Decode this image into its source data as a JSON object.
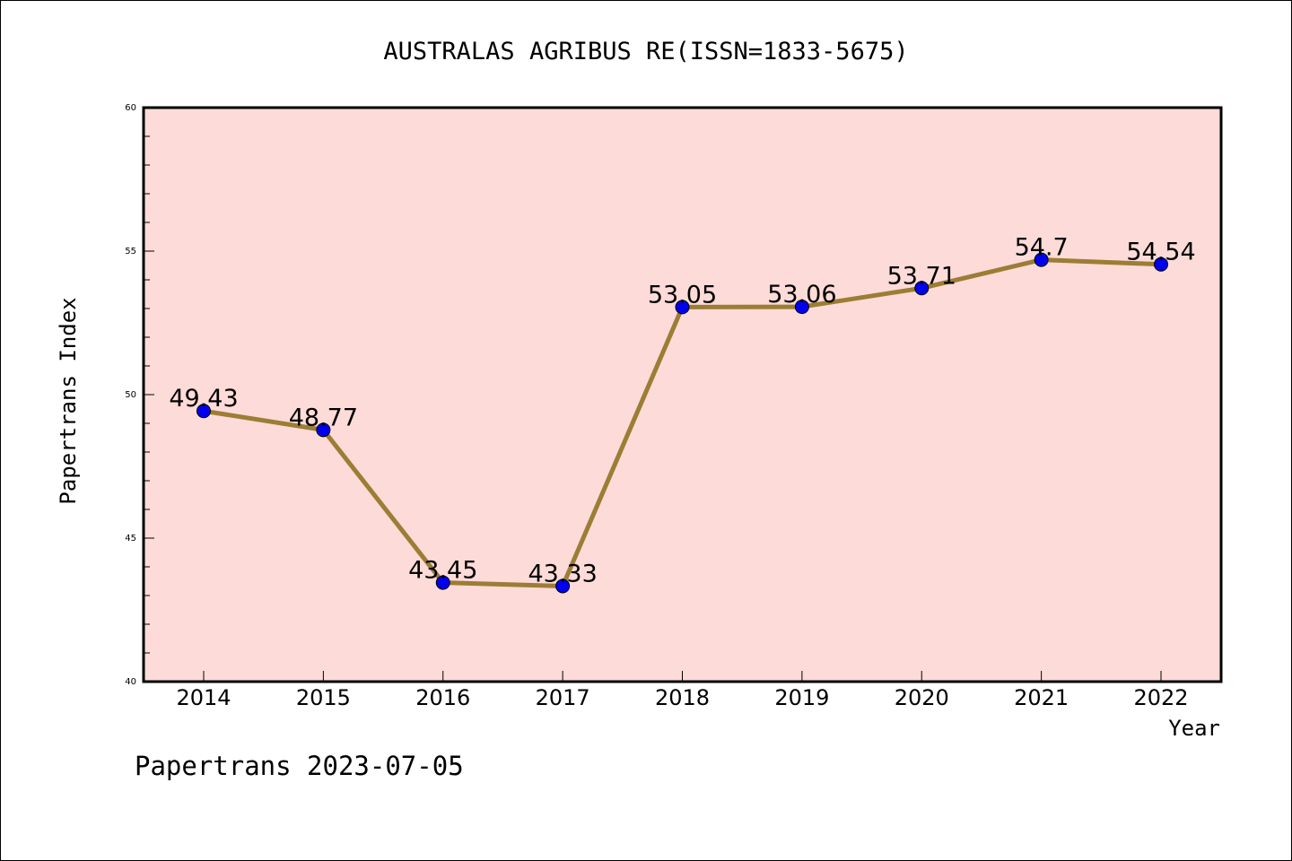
{
  "chart_data": {
    "type": "line",
    "title": "AUSTRALAS AGRIBUS RE(ISSN=1833-5675)",
    "xlabel": "Year",
    "ylabel": "Papertrans Index",
    "categories": [
      "2014",
      "2015",
      "2016",
      "2017",
      "2018",
      "2019",
      "2020",
      "2021",
      "2022"
    ],
    "series": [
      {
        "values": [
          49.43,
          48.77,
          43.45,
          43.33,
          53.05,
          53.06,
          53.71,
          54.7,
          54.54
        ],
        "data_labels": [
          "49.43",
          "48.77",
          "43.45",
          "43.33",
          "53.05",
          "53.06",
          "53.71",
          "54.7",
          "54.54"
        ]
      }
    ],
    "ylim": [
      40,
      60
    ],
    "yticks": [
      "40",
      "45",
      "50",
      "55",
      "60"
    ],
    "grid": false,
    "colors": {
      "plot_background": "#fddbd8",
      "line": "#9b7d35",
      "marker": "#0000ee"
    }
  },
  "footer": {
    "note": "Papertrans 2023-07-05"
  }
}
